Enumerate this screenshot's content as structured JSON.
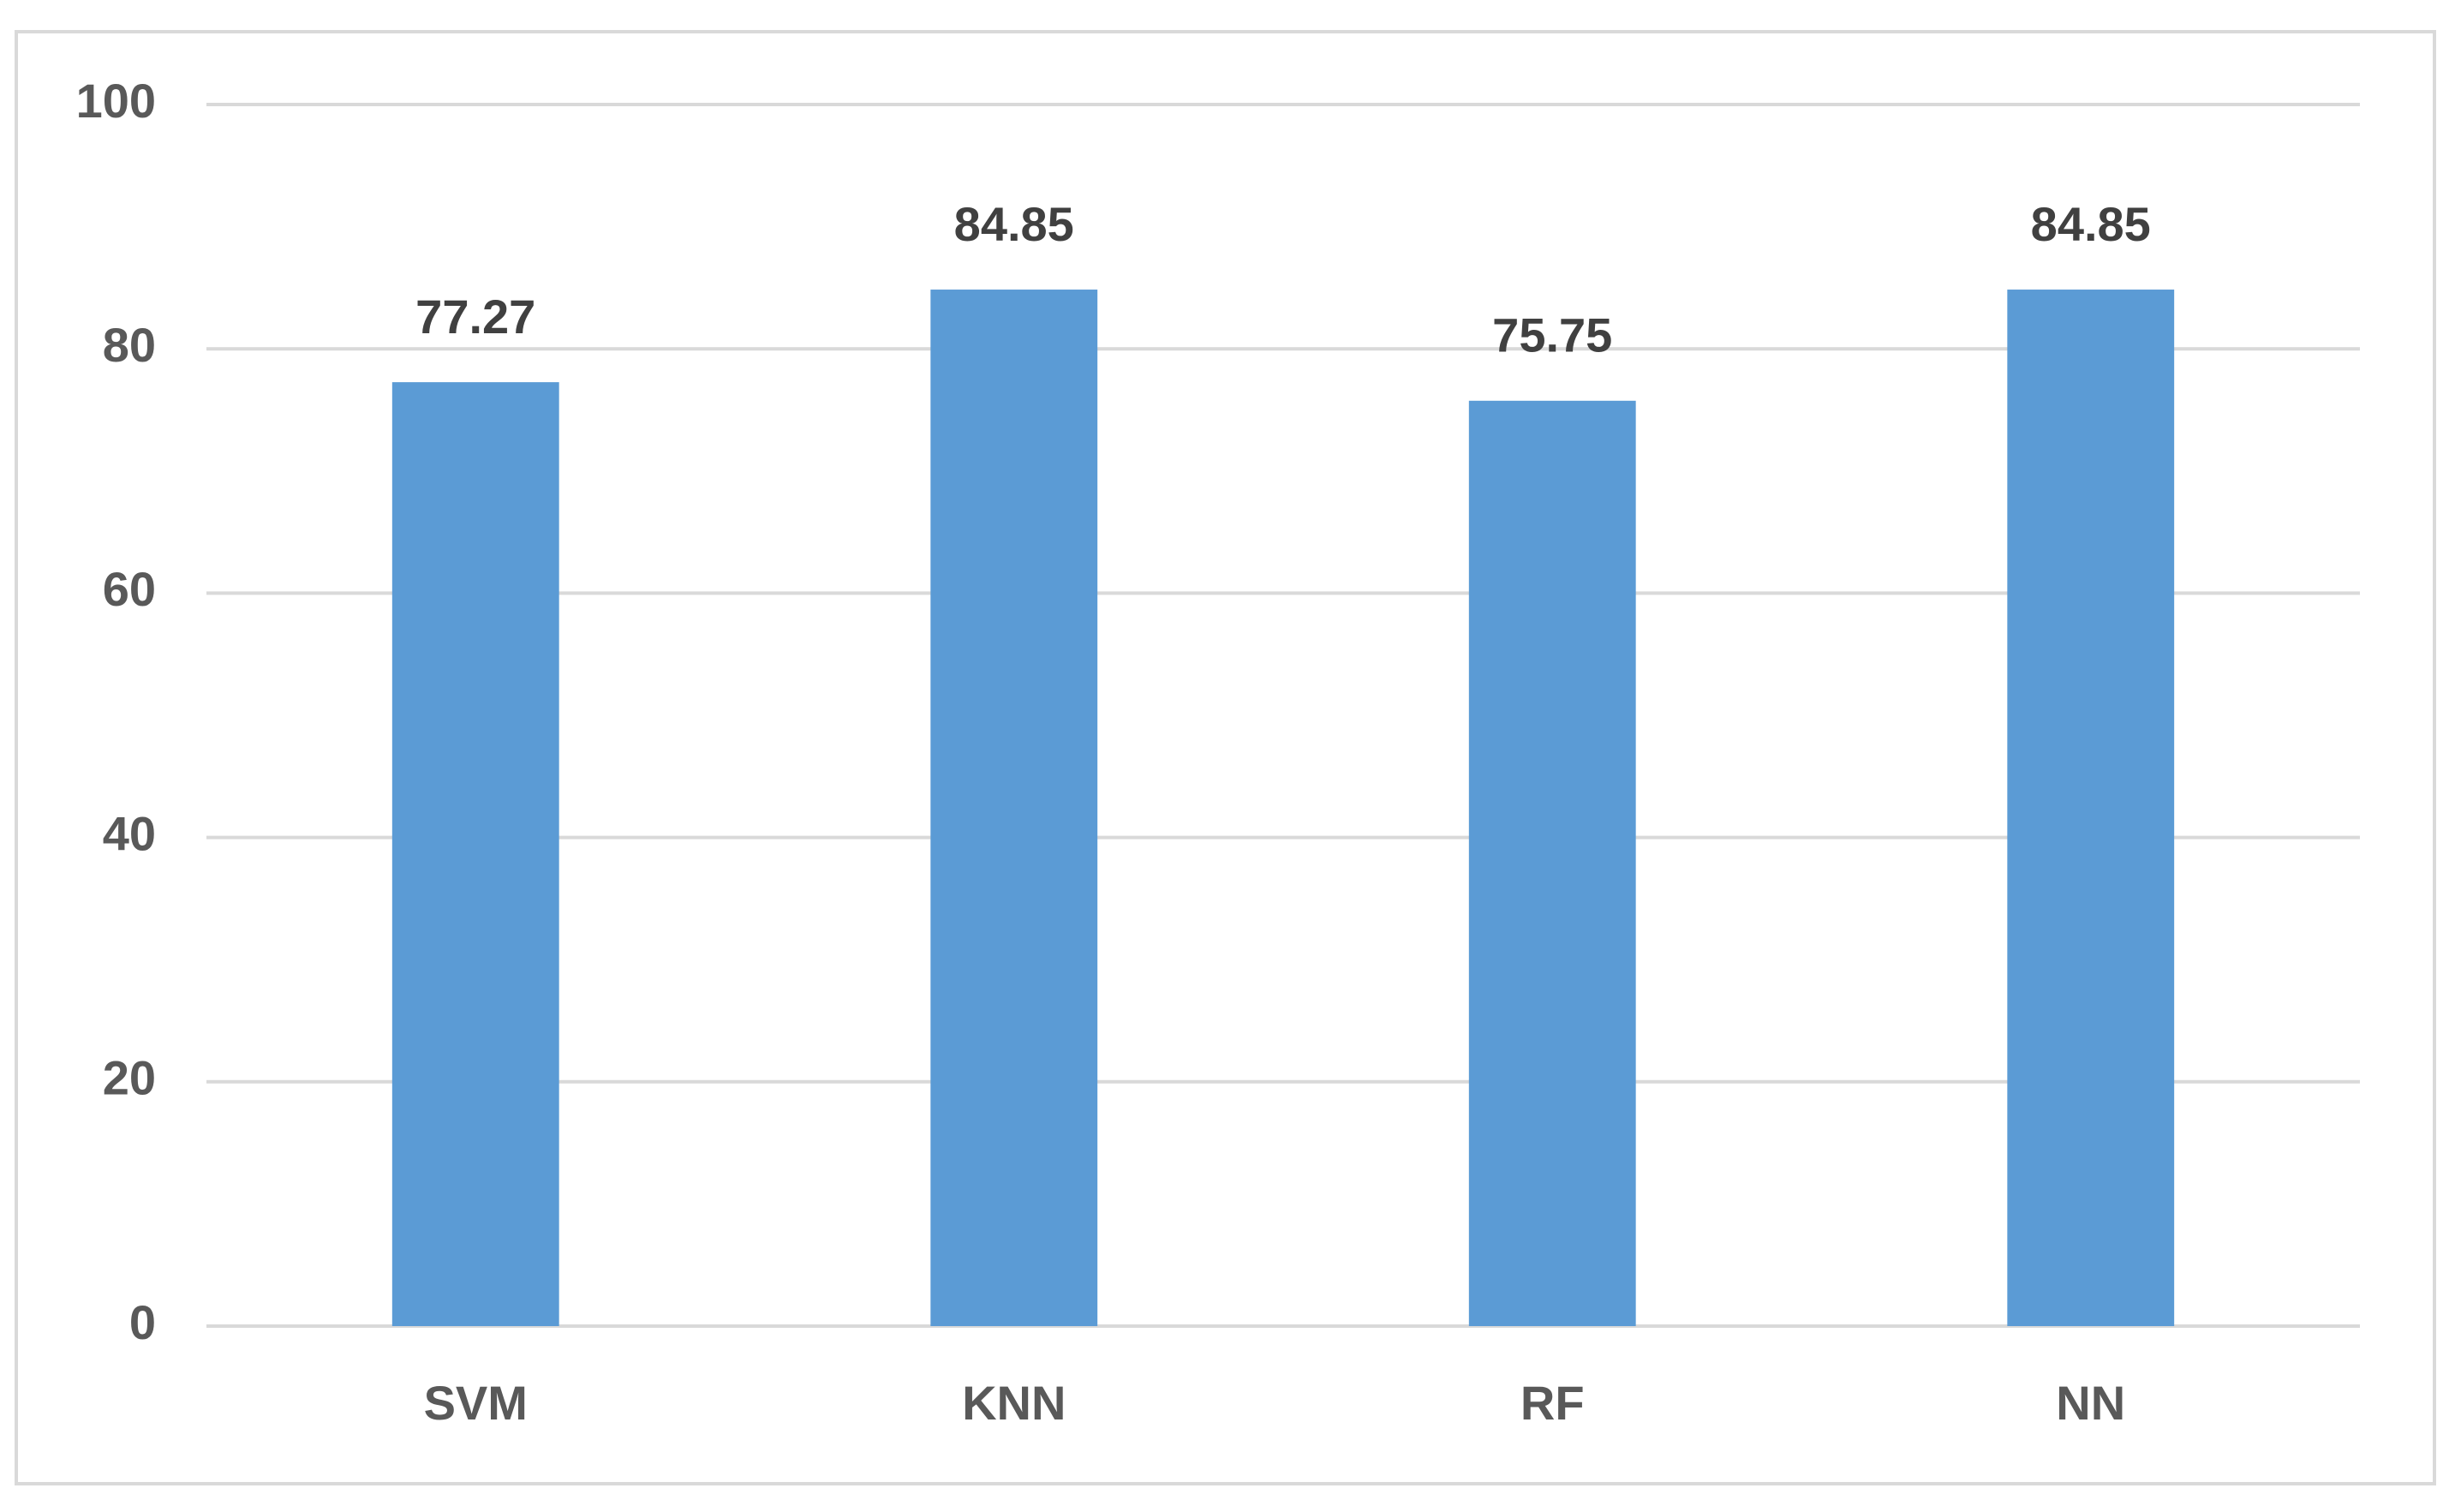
{
  "chart_data": {
    "type": "bar",
    "categories": [
      "SVM",
      "KNN",
      "RF",
      "NN"
    ],
    "values": [
      77.27,
      84.85,
      75.75,
      84.85
    ],
    "color": "#5b9bd5",
    "ylim": [
      0,
      100
    ],
    "yticks": [
      0,
      20,
      40,
      60,
      80,
      100
    ],
    "grid": true,
    "data_labels": true
  }
}
